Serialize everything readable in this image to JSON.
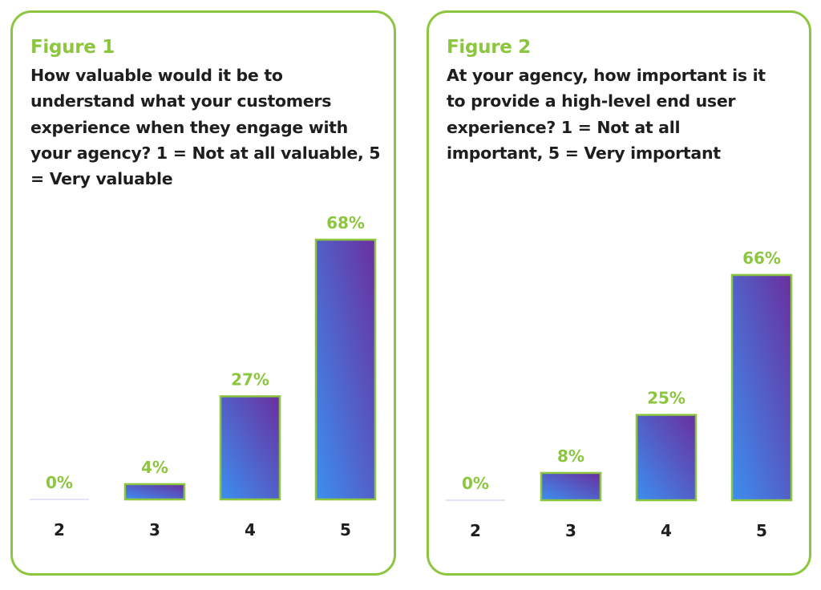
{
  "colors": {
    "accent": "#8cc63f",
    "bar_top": "#6a2f9e",
    "bar_bottom": "#3c8ff0",
    "text": "#1e1e1e"
  },
  "chart_data": [
    {
      "type": "bar",
      "figure_label": "Figure 1",
      "title": "How valuable would it be to understand what your customers experience when they engage with your agency? 1 = Not at all valuable, 5 = Very valuable",
      "categories": [
        "2",
        "3",
        "4",
        "5"
      ],
      "values": [
        0,
        4,
        27,
        68
      ],
      "value_labels": [
        "0%",
        "4%",
        "27%",
        "68%"
      ],
      "ylim": [
        0,
        68
      ],
      "xlabel": "",
      "ylabel": "",
      "grid": false
    },
    {
      "type": "bar",
      "figure_label": "Figure 2",
      "title": "At your agency, how important is it to provide a high-level end user experience? 1 = Not at all important, 5 = Very important",
      "categories": [
        "2",
        "3",
        "4",
        "5"
      ],
      "values": [
        0,
        8,
        25,
        66
      ],
      "value_labels": [
        "0%",
        "8%",
        "25%",
        "66%"
      ],
      "ylim": [
        0,
        66
      ],
      "xlabel": "",
      "ylabel": "",
      "grid": false
    }
  ]
}
